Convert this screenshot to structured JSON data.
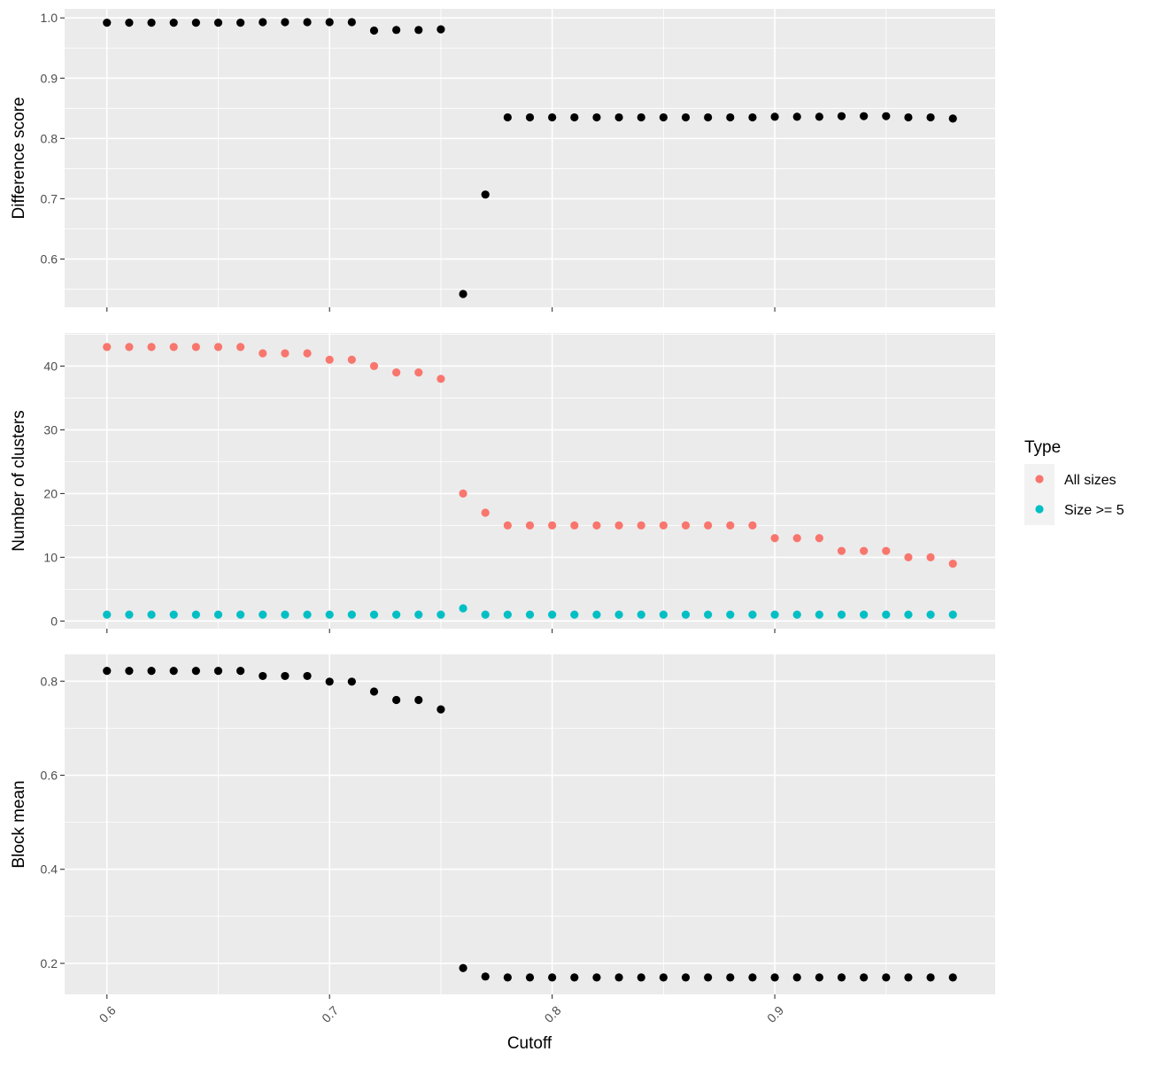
{
  "chart_data": {
    "type": "scatter",
    "xlabel": "Cutoff",
    "x_ticks": [
      "0.6",
      "0.7",
      "0.8",
      "0.9"
    ],
    "xlim": [
      0.581,
      0.999
    ],
    "x": [
      0.6,
      0.61,
      0.62,
      0.63,
      0.64,
      0.65,
      0.66,
      0.67,
      0.68,
      0.69,
      0.7,
      0.71,
      0.72,
      0.73,
      0.74,
      0.75,
      0.76,
      0.77,
      0.78,
      0.79,
      0.8,
      0.81,
      0.82,
      0.83,
      0.84,
      0.85,
      0.86,
      0.87,
      0.88,
      0.89,
      0.9,
      0.91,
      0.92,
      0.93,
      0.94,
      0.95,
      0.96,
      0.97,
      0.98
    ],
    "grid": true,
    "legend": {
      "title": "Type",
      "position": "right",
      "entries": [
        {
          "label": "All sizes",
          "color": "#F8766D"
        },
        {
          "label": "Size >= 5",
          "color": "#00BFC4"
        }
      ]
    },
    "panels": [
      {
        "ylabel": "Difference score",
        "y_ticks": [
          "0.6",
          "0.7",
          "0.8",
          "0.9",
          "1.0"
        ],
        "ylim": [
          0.52,
          1.015
        ],
        "series": [
          {
            "color": "#000000",
            "values": [
              0.992,
              0.992,
              0.992,
              0.992,
              0.992,
              0.992,
              0.992,
              0.993,
              0.993,
              0.993,
              0.993,
              0.993,
              0.979,
              0.98,
              0.98,
              0.981,
              0.542,
              0.707,
              0.835,
              0.835,
              0.835,
              0.835,
              0.835,
              0.835,
              0.835,
              0.835,
              0.835,
              0.835,
              0.835,
              0.835,
              0.836,
              0.836,
              0.836,
              0.837,
              0.837,
              0.837,
              0.835,
              0.835,
              0.833
            ]
          }
        ]
      },
      {
        "ylabel": "Number of clusters",
        "y_ticks": [
          "0",
          "10",
          "20",
          "30",
          "40"
        ],
        "ylim": [
          -1.2,
          45.2
        ],
        "series": [
          {
            "name": "All sizes",
            "color": "#F8766D",
            "values": [
              43,
              43,
              43,
              43,
              43,
              43,
              43,
              42,
              42,
              42,
              41,
              41,
              40,
              39,
              39,
              38,
              20,
              17,
              15,
              15,
              15,
              15,
              15,
              15,
              15,
              15,
              15,
              15,
              15,
              15,
              13,
              13,
              13,
              11,
              11,
              11,
              10,
              10,
              9
            ]
          },
          {
            "name": "Size >= 5",
            "color": "#00BFC4",
            "values": [
              1,
              1,
              1,
              1,
              1,
              1,
              1,
              1,
              1,
              1,
              1,
              1,
              1,
              1,
              1,
              1,
              2,
              1,
              1,
              1,
              1,
              1,
              1,
              1,
              1,
              1,
              1,
              1,
              1,
              1,
              1,
              1,
              1,
              1,
              1,
              1,
              1,
              1,
              1
            ]
          }
        ]
      },
      {
        "ylabel": "Block mean",
        "y_ticks": [
          "0.2",
          "0.4",
          "0.6",
          "0.8"
        ],
        "ylim": [
          0.134,
          0.857
        ],
        "series": [
          {
            "color": "#000000",
            "values": [
              0.822,
              0.822,
              0.822,
              0.822,
              0.822,
              0.822,
              0.822,
              0.811,
              0.811,
              0.811,
              0.799,
              0.799,
              0.778,
              0.76,
              0.76,
              0.74,
              0.19,
              0.172,
              0.17,
              0.17,
              0.17,
              0.17,
              0.17,
              0.17,
              0.17,
              0.17,
              0.17,
              0.17,
              0.17,
              0.17,
              0.17,
              0.17,
              0.17,
              0.17,
              0.17,
              0.17,
              0.17,
              0.17,
              0.17
            ]
          }
        ]
      }
    ]
  }
}
